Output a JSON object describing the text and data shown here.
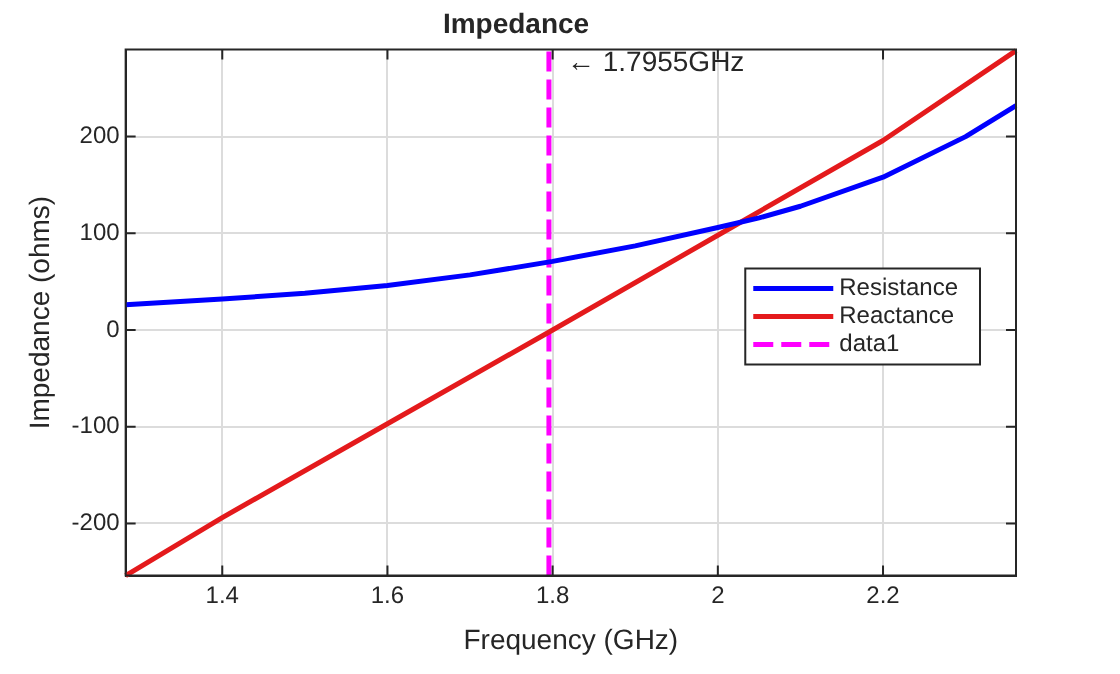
{
  "chart_data": {
    "type": "line",
    "title": "Impedance",
    "xlabel": "Frequency (GHz)",
    "ylabel": "Impedance (ohms)",
    "xlim": [
      1.283,
      2.361
    ],
    "ylim": [
      -254,
      290
    ],
    "xticks": [
      1.4,
      1.6,
      1.8,
      2,
      2.2
    ],
    "yticks": [
      -200,
      -100,
      0,
      100,
      200
    ],
    "grid": true,
    "legend": "right",
    "marker": "none",
    "series": [
      {
        "name": "Resistance",
        "color": "#0000ff",
        "x": [
          1.283,
          1.4,
          1.5,
          1.6,
          1.7,
          1.8,
          1.9,
          2.0,
          2.05,
          2.1,
          2.2,
          2.3,
          2.361
        ],
        "values": [
          26,
          32,
          38,
          46,
          57,
          71,
          87,
          106,
          116,
          128,
          158,
          200,
          232
        ]
      },
      {
        "name": "Reactance",
        "color": "#e41a1c",
        "x": [
          1.283,
          1.4,
          1.6,
          1.8,
          2.0,
          2.2,
          2.361
        ],
        "values": [
          -254,
          -194,
          -97,
          0,
          98,
          196,
          289
        ]
      },
      {
        "name": "data1",
        "color": "#ff00ff",
        "line_style": "dashed",
        "x": [
          1.7955,
          1.7955
        ],
        "values": [
          -254,
          290
        ]
      }
    ],
    "annotations": [
      {
        "text": "← 1.7955GHz",
        "x": 1.7955,
        "y": 276
      }
    ]
  }
}
